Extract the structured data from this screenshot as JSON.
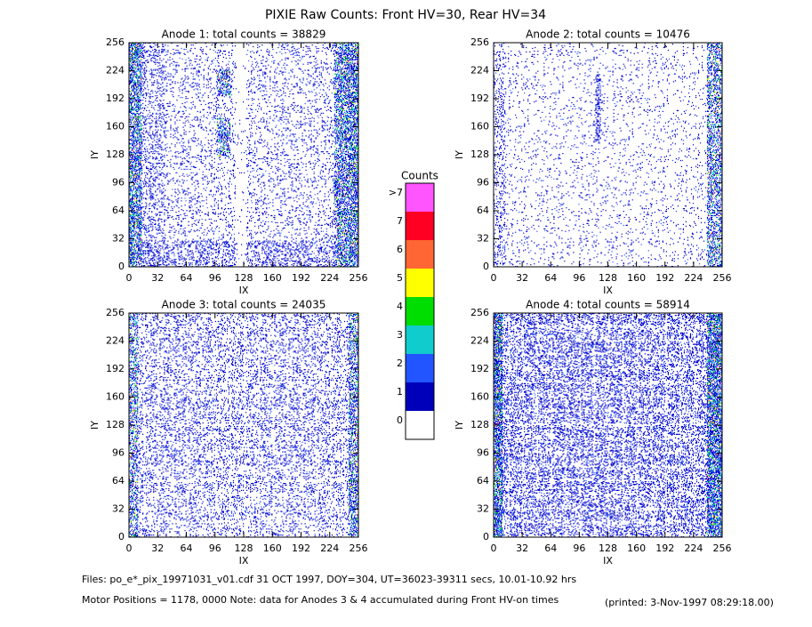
{
  "title": "PIXIE Raw Counts:  Front HV=30, Rear HV=34",
  "chart_data": [
    {
      "type": "heatmap",
      "title": "Anode 1: total counts = 38829",
      "xlabel": "IX",
      "ylabel": "IY",
      "xlim": [
        0,
        256
      ],
      "ylim": [
        0,
        256
      ],
      "xticks": [
        0,
        32,
        64,
        96,
        128,
        160,
        192,
        224,
        256
      ],
      "yticks": [
        0,
        32,
        64,
        96,
        128,
        160,
        192,
        224,
        256
      ]
    },
    {
      "type": "heatmap",
      "title": "Anode 2: total counts = 10476",
      "xlabel": "IX",
      "ylabel": "IY",
      "xlim": [
        0,
        256
      ],
      "ylim": [
        0,
        256
      ],
      "xticks": [
        0,
        32,
        64,
        96,
        128,
        160,
        192,
        224,
        256
      ],
      "yticks": [
        0,
        32,
        64,
        96,
        128,
        160,
        192,
        224,
        256
      ]
    },
    {
      "type": "heatmap",
      "title": "Anode 3: total counts = 24035",
      "xlabel": "IX",
      "ylabel": "IY",
      "xlim": [
        0,
        256
      ],
      "ylim": [
        0,
        256
      ],
      "xticks": [
        0,
        32,
        64,
        96,
        128,
        160,
        192,
        224,
        256
      ],
      "yticks": [
        0,
        32,
        64,
        96,
        128,
        160,
        192,
        224,
        256
      ]
    },
    {
      "type": "heatmap",
      "title": "Anode 4: total counts = 58914",
      "xlabel": "IX",
      "ylabel": "IY",
      "xlim": [
        0,
        256
      ],
      "ylim": [
        0,
        256
      ],
      "xticks": [
        0,
        32,
        64,
        96,
        128,
        160,
        192,
        224,
        256
      ],
      "yticks": [
        0,
        32,
        64,
        96,
        128,
        160,
        192,
        224,
        256
      ]
    }
  ],
  "colorbar": {
    "title": "Counts",
    "levels": [
      ">7",
      7,
      6,
      5,
      4,
      3,
      2,
      1,
      0
    ],
    "colors": [
      "#ff55ff",
      "#ff0022",
      "#ff6633",
      "#ffff00",
      "#00dd00",
      "#11cccc",
      "#2255ff",
      "#0000bb",
      "#ffffff"
    ]
  },
  "footer": {
    "files": "Files: po_e*_pix_19971031_v01.cdf    31 OCT 1997, DOY=304, UT=36023-39311 secs, 10.01-10.92 hrs",
    "motor": "Motor Positions = 1178, 0000    Note: data for Anodes 3 & 4 accumulated during Front HV-on times",
    "printed": "(printed:  3-Nov-1997 08:29:18.00)"
  }
}
